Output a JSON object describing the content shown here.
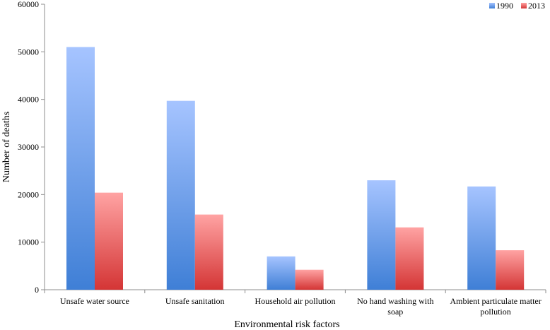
{
  "chart_data": {
    "type": "bar",
    "title": "",
    "xlabel": "Environmental  risk factors",
    "ylabel": "Number  of  deaths",
    "ylim": [
      0,
      60000
    ],
    "yticks": [
      0,
      10000,
      20000,
      30000,
      40000,
      50000,
      60000
    ],
    "categories": [
      [
        "Unsafe water source"
      ],
      [
        "Unsafe sanitation"
      ],
      [
        "Household air pollution"
      ],
      [
        "No hand washing with",
        "soap"
      ],
      [
        "Ambient particulate matter",
        "pollution"
      ]
    ],
    "series": [
      {
        "name": "1990",
        "values": [
          51000,
          39700,
          7000,
          23000,
          21700
        ],
        "color_top": "#a6c4ff",
        "color_bottom": "#3f7fd6"
      },
      {
        "name": "2013",
        "values": [
          20400,
          15800,
          4200,
          13100,
          8300
        ],
        "color_top": "#ffa3a3",
        "color_bottom": "#d43535"
      }
    ],
    "legend_position": "top-right",
    "grid": false
  }
}
